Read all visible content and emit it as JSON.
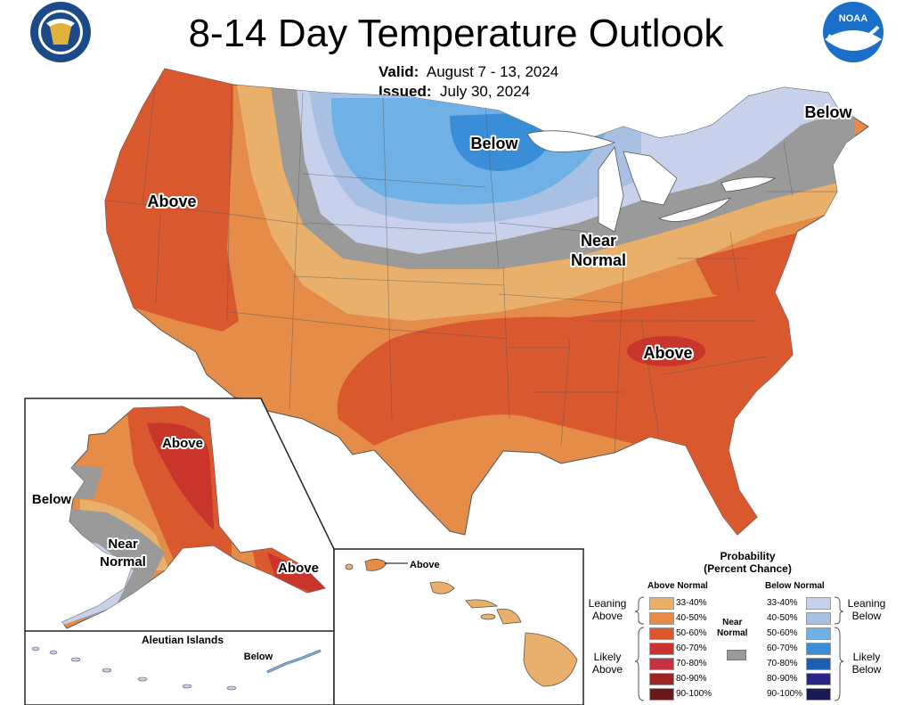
{
  "title": "8-14 Day Temperature Outlook",
  "valid_label": "Valid:",
  "valid_dates": "August 7 - 13, 2024",
  "issued_label": "Issued:",
  "issued_date": "July 30, 2024",
  "map_labels": {
    "conus_above_west": "Above",
    "conus_below_north": "Below",
    "conus_below_northeast": "Below",
    "conus_near_normal_line1": "Near",
    "conus_near_normal_line2": "Normal",
    "conus_above_southeast": "Above",
    "alaska_above_north": "Above",
    "alaska_below_west": "Below",
    "alaska_near_normal_line1": "Near",
    "alaska_near_normal_line2": "Normal",
    "alaska_above_southeast": "Above",
    "aleutian_title": "Aleutian Islands",
    "aleutian_below": "Below",
    "hawaii_above": "Above"
  },
  "legend": {
    "title_line1": "Probability",
    "title_line2": "(Percent Chance)",
    "above_header": "Above Normal",
    "below_header": "Below Normal",
    "near_normal_line1": "Near",
    "near_normal_line2": "Normal",
    "leaning_above_line1": "Leaning",
    "leaning_above_line2": "Above",
    "likely_above_line1": "Likely",
    "likely_above_line2": "Above",
    "leaning_below_line1": "Leaning",
    "leaning_below_line2": "Below",
    "likely_below_line1": "Likely",
    "likely_below_line2": "Below",
    "above_categories": [
      {
        "range": "33-40%",
        "color": "#e8b06a"
      },
      {
        "range": "40-50%",
        "color": "#e58c48"
      },
      {
        "range": "50-60%",
        "color": "#d9582e"
      },
      {
        "range": "60-70%",
        "color": "#c9352b"
      },
      {
        "range": "70-80%",
        "color": "#c43342"
      },
      {
        "range": "80-90%",
        "color": "#9c2526"
      },
      {
        "range": "90-100%",
        "color": "#6b1a1a"
      }
    ],
    "below_categories": [
      {
        "range": "33-40%",
        "color": "#c8d1ec"
      },
      {
        "range": "40-50%",
        "color": "#a8c1e2"
      },
      {
        "range": "50-60%",
        "color": "#6fb1e6"
      },
      {
        "range": "60-70%",
        "color": "#3a8ed8"
      },
      {
        "range": "70-80%",
        "color": "#1f5fb0"
      },
      {
        "range": "80-90%",
        "color": "#2b2685"
      },
      {
        "range": "90-100%",
        "color": "#1a1a55"
      }
    ],
    "near_normal_color": "#9a9a9a"
  },
  "colors": {
    "leaning_above": "#e8b06a",
    "above_40_50": "#e58c48",
    "above_50_60": "#d9582e",
    "above_60_70": "#c9352b",
    "near_normal": "#9a9a9a",
    "leaning_below": "#c8d1ec",
    "below_40_50": "#a8c1e2",
    "below_50_60": "#6fb1e6",
    "logo_blue": "#1b4a8a",
    "noaa_blue": "#1a6fc9"
  },
  "icons": [
    "department-of-commerce-seal",
    "noaa-logo"
  ]
}
